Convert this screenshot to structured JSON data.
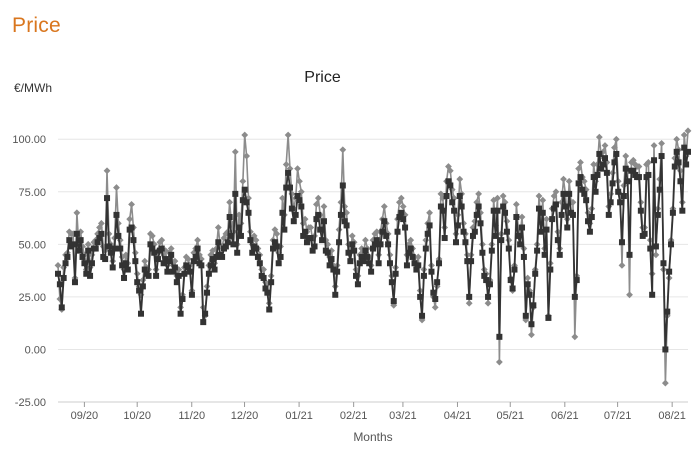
{
  "header": {
    "title": "Price"
  },
  "chart_data": {
    "type": "line",
    "title": "Price",
    "ylabel": "€/MWh",
    "xlabel": "Months",
    "ylim": [
      -25,
      112
    ],
    "y_ticks": [
      "100.00",
      "75.00",
      "50.00",
      "25.00",
      "0.00",
      "-25.00"
    ],
    "y_tick_values": [
      100,
      75,
      50,
      25,
      0,
      -25
    ],
    "x_ticks": [
      "09/20",
      "10/20",
      "11/20",
      "12/20",
      "01/21",
      "02/21",
      "03/21",
      "04/21",
      "05/21",
      "06/21",
      "07/21",
      "08/21"
    ],
    "x_range_days": [
      0,
      358
    ],
    "x_tick_days": [
      15,
      45,
      76,
      106,
      137,
      168,
      196,
      227,
      257,
      288,
      318,
      349
    ],
    "colors": {
      "max": "#8c8c8c",
      "avg": "#333333"
    },
    "series": [
      {
        "values": [
          40,
          24,
          19,
          39,
          45,
          46,
          56,
          55,
          55,
          34,
          65,
          50,
          56,
          49,
          45,
          38,
          50,
          39,
          45,
          51,
          52,
          55,
          58,
          60,
          49,
          47,
          85,
          55,
          50,
          42,
          53,
          77,
          60,
          52,
          44,
          38,
          45,
          41,
          62,
          69,
          58,
          46,
          36,
          30,
          26,
          33,
          42,
          39,
          38,
          55,
          54,
          50,
          38,
          47,
          51,
          52,
          45,
          47,
          40,
          46,
          48,
          40,
          42,
          35,
          38,
          20,
          26,
          39,
          44,
          43,
          40,
          28,
          46,
          48,
          52,
          45,
          43,
          20,
          16,
          30,
          40,
          45,
          47,
          41,
          48,
          58,
          49,
          49,
          53,
          55,
          56,
          70,
          60,
          56,
          94,
          50,
          64,
          60,
          80,
          102,
          92,
          72,
          56,
          50,
          54,
          52,
          48,
          45,
          38,
          38,
          32,
          31,
          22,
          35,
          52,
          57,
          55,
          46,
          49,
          72,
          64,
          88,
          102,
          86,
          74,
          67,
          72,
          86,
          80,
          75,
          60,
          62,
          56,
          58,
          58,
          52,
          54,
          69,
          72,
          64,
          57,
          68,
          52,
          50,
          44,
          47,
          40,
          30,
          40,
          57,
          70,
          95,
          68,
          65,
          50,
          46,
          54,
          51,
          38,
          35,
          45,
          48,
          46,
          52,
          48,
          44,
          40,
          52,
          55,
          56,
          45,
          56,
          62,
          68,
          60,
          55,
          45,
          35,
          21,
          39,
          62,
          70,
          72,
          68,
          64,
          45,
          50,
          52,
          48,
          44,
          41,
          44,
          28,
          14,
          38,
          52,
          60,
          65,
          40,
          25,
          20,
          30,
          43,
          74,
          72,
          58,
          80,
          87,
          85,
          76,
          72,
          55,
          64,
          81,
          74,
          60,
          55,
          45,
          22,
          45,
          58,
          61,
          70,
          74,
          65,
          50,
          38,
          36,
          22,
          33,
          50,
          71,
          59,
          72,
          -6,
          55,
          73,
          70,
          61,
          52,
          34,
          28,
          40,
          69,
          58,
          54,
          63,
          48,
          14,
          34,
          28,
          7,
          20,
          38,
          50,
          73,
          60,
          71,
          48,
          62,
          16,
          41,
          67,
          73,
          75,
          56,
          48,
          70,
          81,
          74,
          62,
          80,
          70,
          70,
          6,
          35,
          86,
          89,
          82,
          80,
          76,
          65,
          60,
          67,
          88,
          80,
          88,
          101,
          92,
          94,
          97,
          89,
          68,
          74,
          84,
          96,
          100,
          80,
          74,
          40,
          78,
          92,
          85,
          26,
          89,
          90,
          88,
          87,
          87,
          70,
          58,
          58,
          88,
          89,
          52,
          36,
          97,
          45,
          67,
          81,
          98,
          38,
          -16,
          16,
          34,
          52,
          67,
          91,
          100,
          95,
          85,
          70,
          102,
          92,
          104
        ]
      },
      {
        "values": [
          36,
          31,
          20,
          34,
          41,
          44,
          52,
          49,
          50,
          32,
          55,
          47,
          52,
          44,
          41,
          36,
          47,
          35,
          41,
          48,
          48,
          51,
          53,
          55,
          44,
          43,
          72,
          49,
          46,
          39,
          48,
          64,
          54,
          48,
          40,
          34,
          41,
          38,
          57,
          58,
          52,
          42,
          32,
          28,
          17,
          30,
          38,
          36,
          35,
          50,
          48,
          46,
          35,
          43,
          47,
          48,
          41,
          43,
          37,
          42,
          45,
          37,
          39,
          32,
          35,
          17,
          24,
          36,
          40,
          39,
          37,
          26,
          42,
          44,
          48,
          41,
          40,
          13,
          17,
          27,
          36,
          40,
          43,
          38,
          44,
          51,
          45,
          44,
          48,
          49,
          51,
          63,
          54,
          50,
          74,
          46,
          58,
          54,
          71,
          76,
          70,
          65,
          52,
          46,
          49,
          48,
          44,
          41,
          35,
          34,
          29,
          27,
          19,
          32,
          48,
          51,
          49,
          41,
          44,
          65,
          57,
          77,
          84,
          77,
          67,
          61,
          64,
          73,
          71,
          68,
          54,
          56,
          51,
          53,
          53,
          47,
          49,
          62,
          64,
          57,
          52,
          61,
          47,
          46,
          40,
          43,
          38,
          26,
          37,
          51,
          64,
          78,
          61,
          59,
          46,
          42,
          50,
          47,
          35,
          31,
          41,
          44,
          42,
          47,
          44,
          41,
          37,
          48,
          50,
          52,
          41,
          50,
          56,
          61,
          54,
          50,
          41,
          32,
          23,
          36,
          56,
          63,
          65,
          62,
          58,
          40,
          46,
          48,
          44,
          41,
          38,
          40,
          25,
          16,
          35,
          48,
          55,
          59,
          37,
          27,
          24,
          32,
          41,
          68,
          66,
          53,
          73,
          80,
          78,
          70,
          66,
          51,
          59,
          73,
          68,
          56,
          51,
          42,
          25,
          42,
          54,
          56,
          64,
          68,
          60,
          46,
          35,
          33,
          25,
          31,
          47,
          66,
          54,
          66,
          6,
          52,
          68,
          65,
          56,
          48,
          33,
          29,
          38,
          63,
          54,
          50,
          58,
          44,
          16,
          31,
          26,
          12,
          21,
          36,
          47,
          67,
          56,
          65,
          45,
          57,
          15,
          38,
          62,
          67,
          69,
          52,
          45,
          64,
          74,
          68,
          58,
          74,
          65,
          64,
          25,
          33,
          79,
          82,
          76,
          74,
          71,
          61,
          56,
          63,
          82,
          75,
          83,
          93,
          86,
          88,
          91,
          84,
          64,
          70,
          79,
          89,
          93,
          75,
          70,
          51,
          73,
          86,
          80,
          45,
          85,
          85,
          83,
          82,
          82,
          66,
          54,
          55,
          82,
          83,
          48,
          26,
          90,
          49,
          64,
          76,
          92,
          41,
          0,
          18,
          37,
          50,
          65,
          87,
          94,
          89,
          80,
          66,
          96,
          88,
          94
        ]
      }
    ]
  }
}
